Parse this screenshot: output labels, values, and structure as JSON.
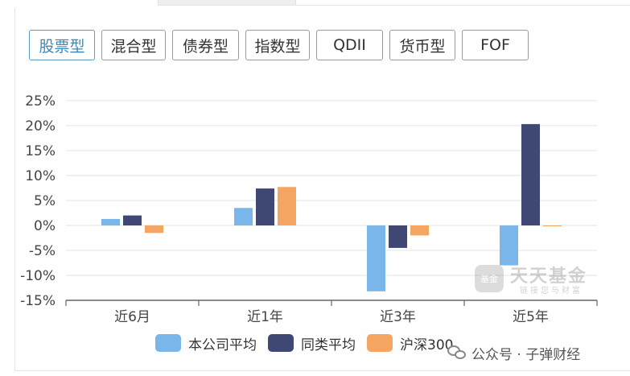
{
  "tabs": [
    {
      "label": "股票型",
      "active": true
    },
    {
      "label": "混合型",
      "active": false
    },
    {
      "label": "债券型",
      "active": false
    },
    {
      "label": "指数型",
      "active": false
    },
    {
      "label": "QDII",
      "active": false
    },
    {
      "label": "货币型",
      "active": false
    },
    {
      "label": "FOF",
      "active": false
    }
  ],
  "colors": {
    "company_avg": "#7ab6ea",
    "peer_avg": "#3f4775",
    "hs300": "#f5a562",
    "grid": "#dde5ec",
    "axis": "#666666",
    "tab_active": "#3d88b8"
  },
  "chart_data": {
    "type": "bar",
    "categories": [
      "近6月",
      "近1年",
      "近3年",
      "近5年"
    ],
    "series": [
      {
        "name": "本公司平均",
        "values": [
          1.3,
          3.5,
          -13.2,
          -8.0
        ]
      },
      {
        "name": "同类平均",
        "values": [
          2.0,
          7.4,
          -4.5,
          20.3
        ]
      },
      {
        "name": "沪深300",
        "values": [
          -1.5,
          7.7,
          -2.0,
          -0.1
        ]
      }
    ],
    "yticks": [
      "25%",
      "20%",
      "15%",
      "10%",
      "5%",
      "0%",
      "-5%",
      "-10%",
      "-15%"
    ],
    "ylim": [
      -15,
      25
    ],
    "grid": true,
    "legend_position": "bottom"
  },
  "watermark": {
    "title": "天天基金",
    "slogan": "链接您与财富",
    "badge": "基金"
  },
  "credit": {
    "text": "公众号 · 子弹财经",
    "icon": "wechat-icon"
  }
}
